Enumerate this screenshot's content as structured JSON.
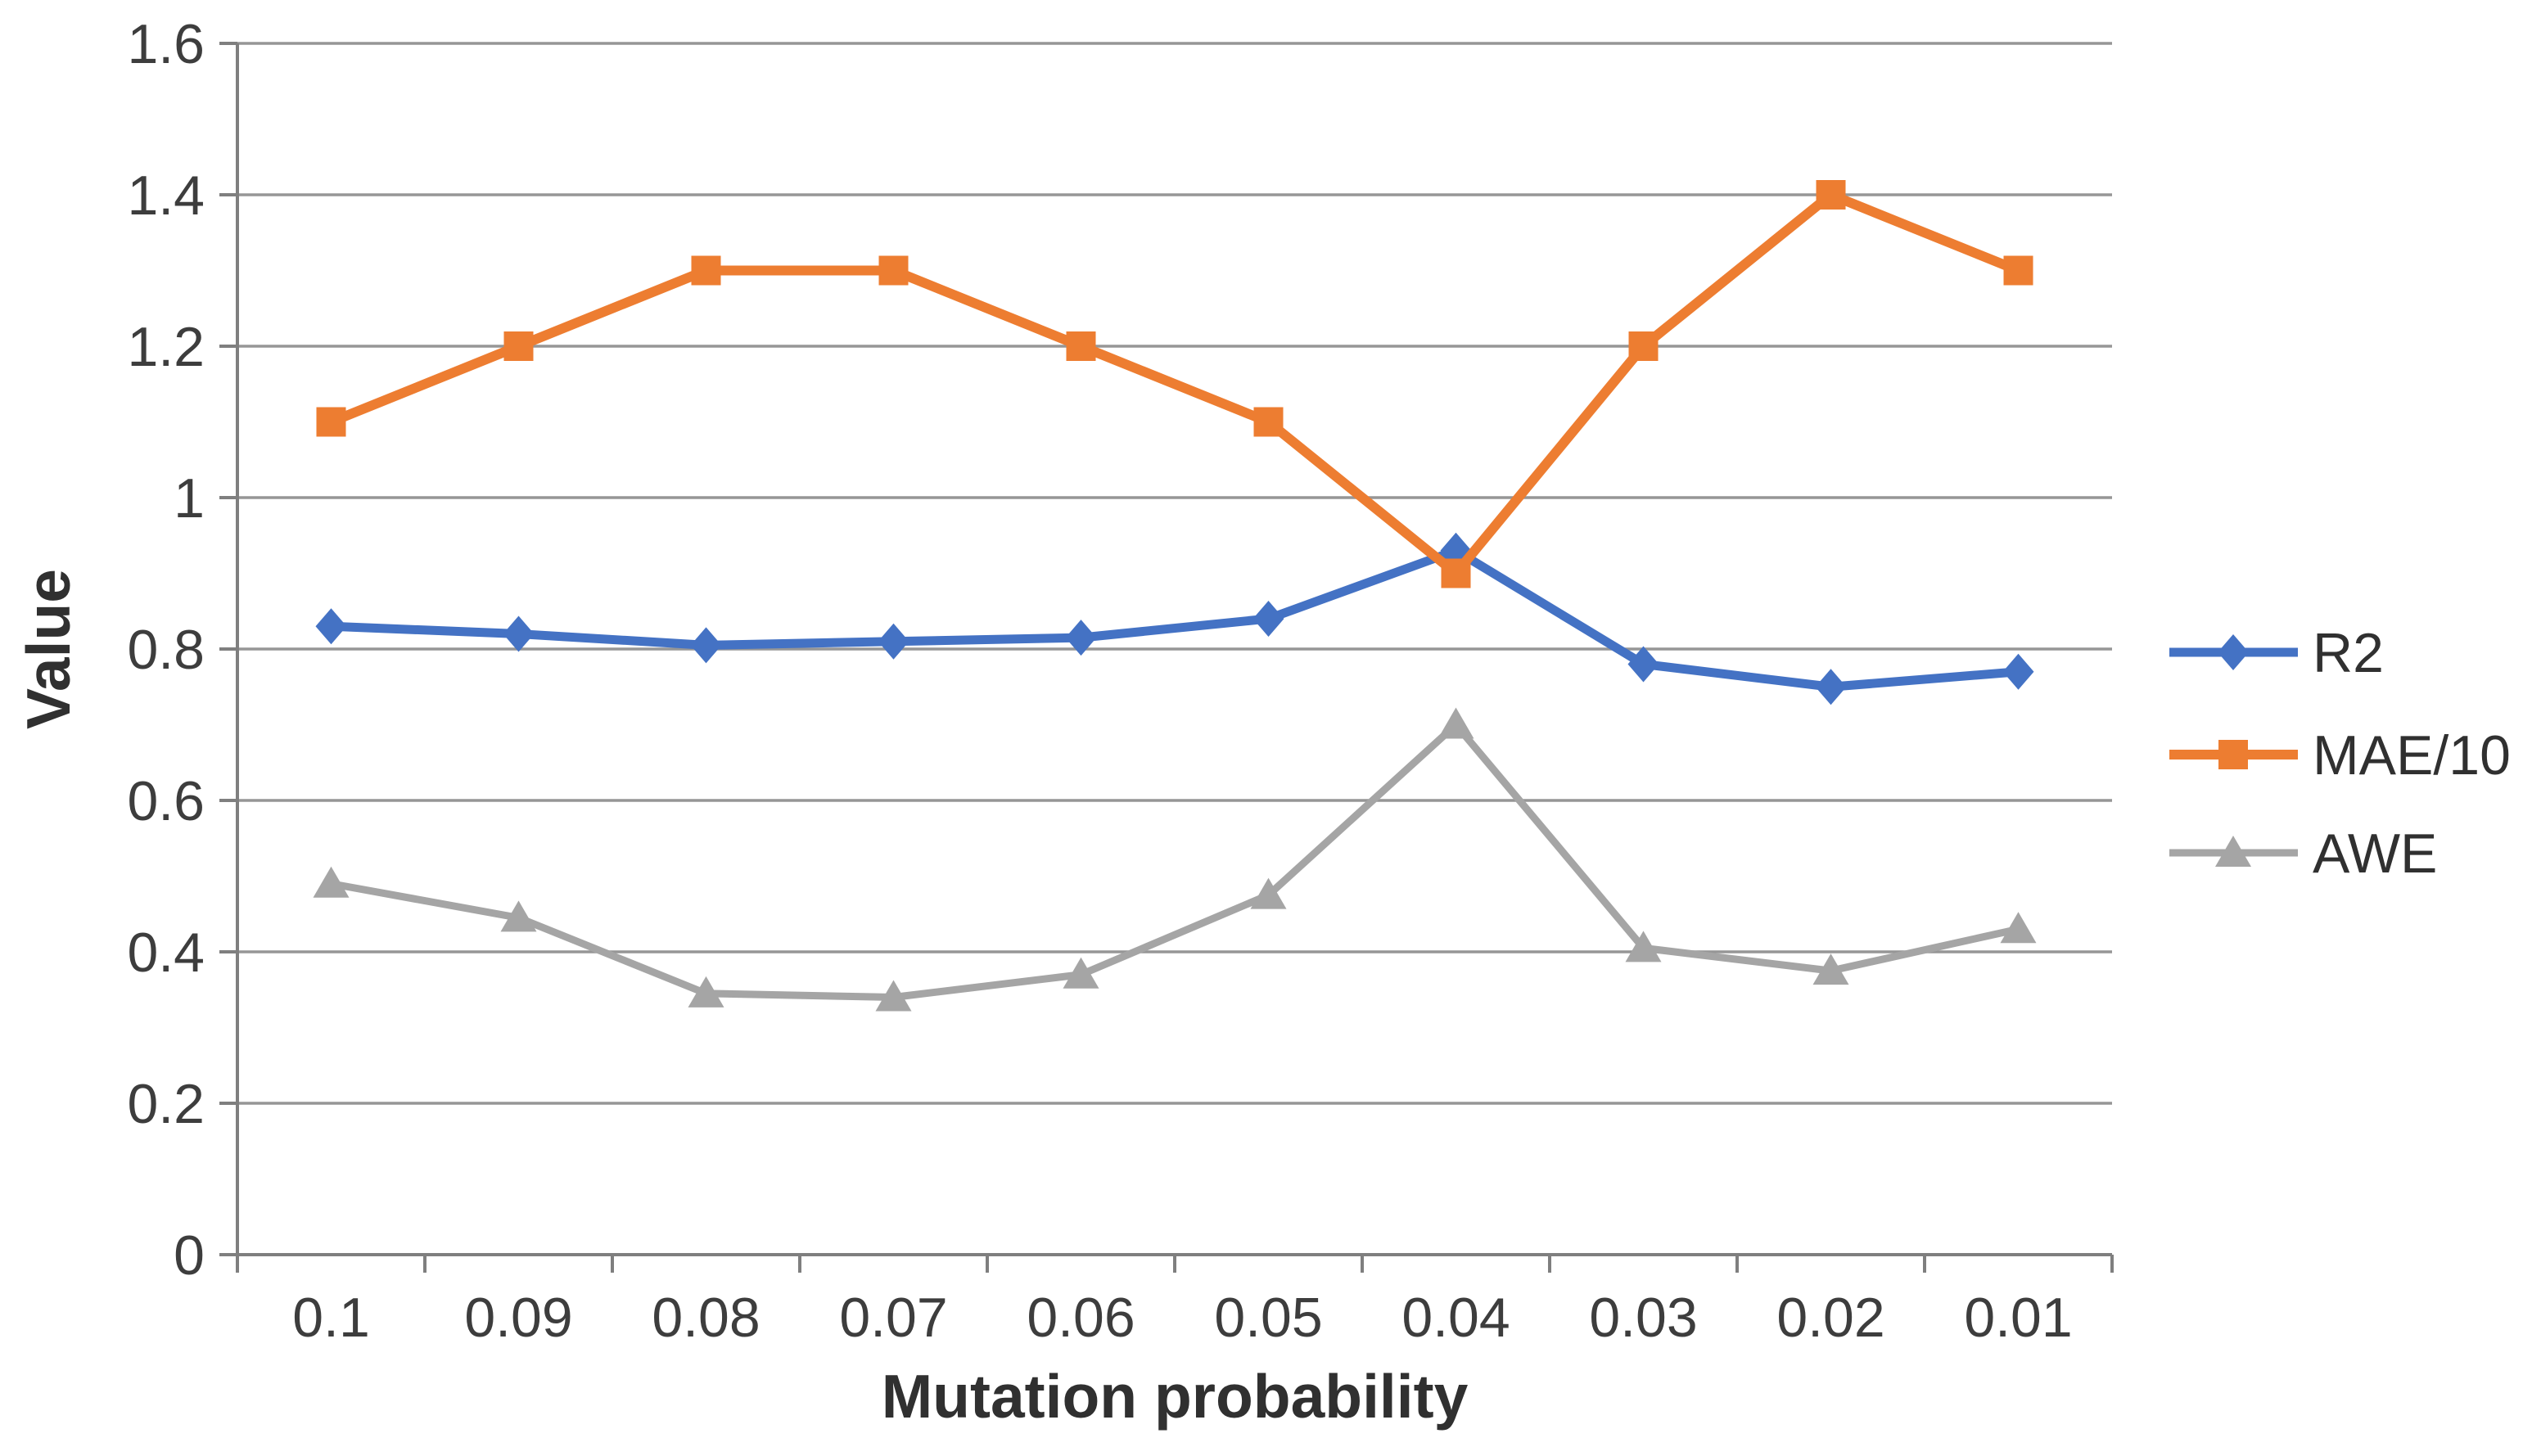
{
  "chart_data": {
    "type": "line",
    "title": "",
    "xlabel": "Mutation probability",
    "ylabel": "Value",
    "categories": [
      "0.1",
      "0.09",
      "0.08",
      "0.07",
      "0.06",
      "0.05",
      "0.04",
      "0.03",
      "0.02",
      "0.01"
    ],
    "y_ticks": [
      "0",
      "0.2",
      "0.4",
      "0.6",
      "0.8",
      "1",
      "1.2",
      "1.4",
      "1.6"
    ],
    "y_tick_values": [
      0,
      0.2,
      0.4,
      0.6,
      0.8,
      1,
      1.2,
      1.4,
      1.6
    ],
    "ylim": [
      0,
      1.6
    ],
    "grid": "horizontal-only",
    "legend_position": "right",
    "series": [
      {
        "name": "R2",
        "color": "#4472C4",
        "marker": "diamond",
        "values": [
          0.83,
          0.82,
          0.805,
          0.81,
          0.815,
          0.84,
          0.93,
          0.78,
          0.75,
          0.77
        ]
      },
      {
        "name": "MAE/10",
        "color": "#ED7D31",
        "marker": "square",
        "values": [
          1.1,
          1.2,
          1.3,
          1.3,
          1.2,
          1.1,
          0.9,
          1.2,
          1.4,
          1.3
        ]
      },
      {
        "name": "AWE",
        "color": "#A5A5A5",
        "marker": "triangle",
        "values": [
          0.49,
          0.445,
          0.345,
          0.34,
          0.37,
          0.475,
          0.7,
          0.405,
          0.375,
          0.43
        ]
      }
    ],
    "colors": {
      "gridline": "#969696",
      "axis": "#7f7f7f",
      "tick_text": "#3d3d3d",
      "title_text": "#303030",
      "background": "#ffffff"
    }
  }
}
